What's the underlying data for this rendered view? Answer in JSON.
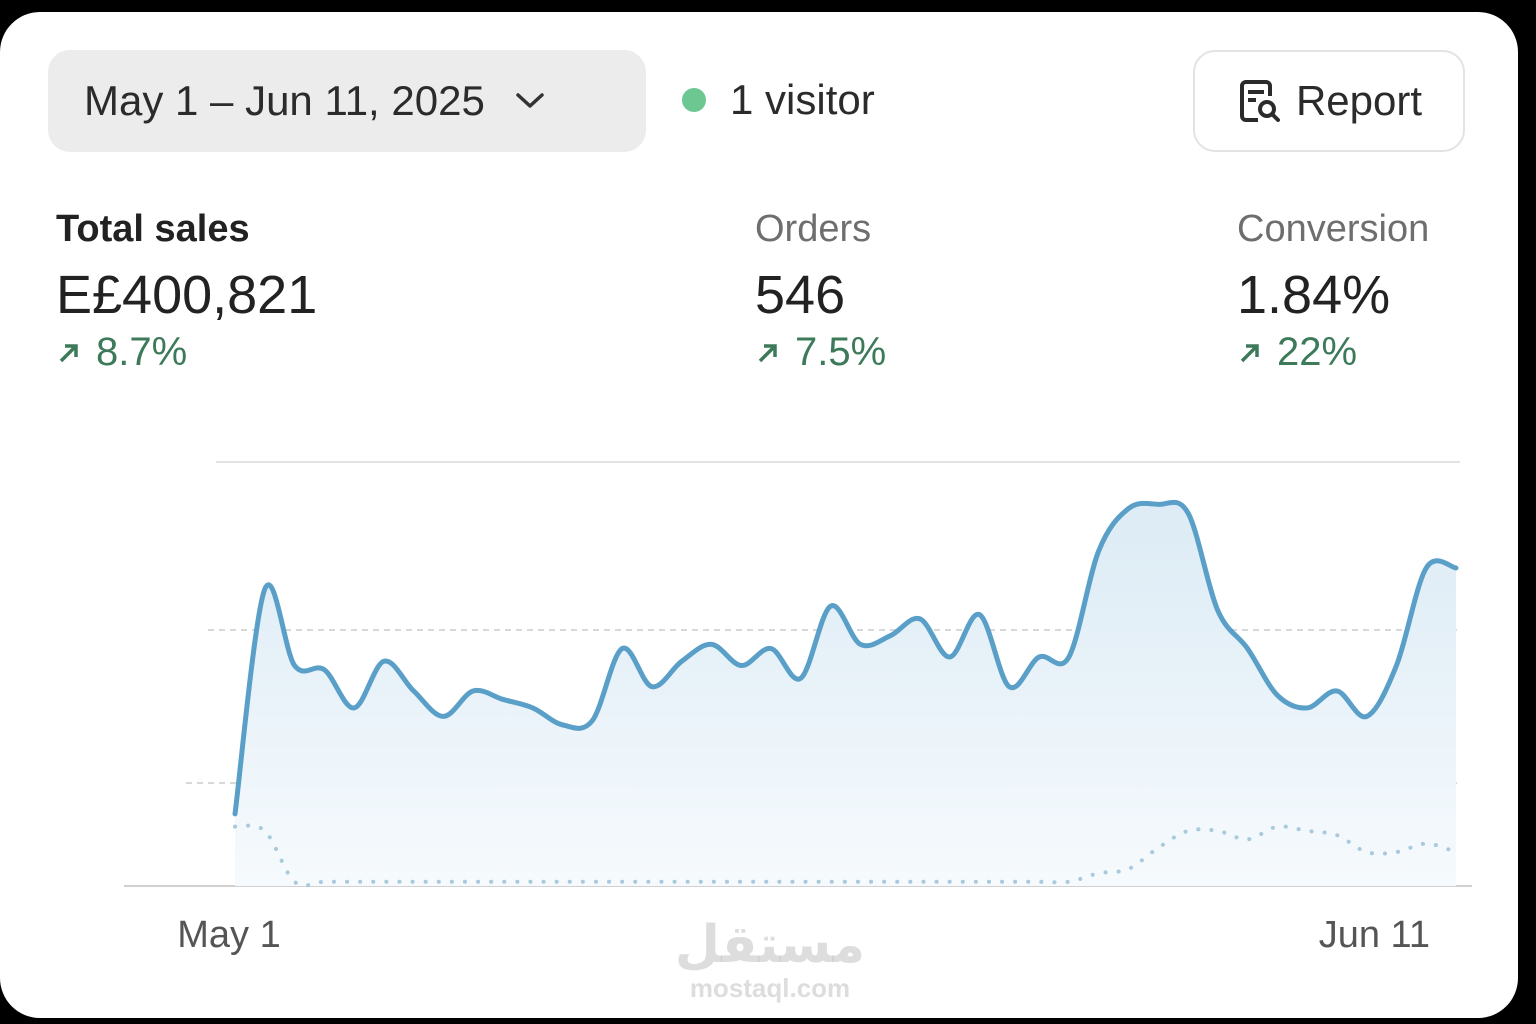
{
  "header": {
    "date_range": "May 1 – Jun 11, 2025",
    "visitors": "1 visitor",
    "report_button": "Report"
  },
  "metrics": [
    {
      "label": "Total sales",
      "value": "E£400,821",
      "change": "8.7%"
    },
    {
      "label": "Orders",
      "value": "546",
      "change": "7.5%"
    },
    {
      "label": "Conversion",
      "value": "1.84%",
      "change": "22%"
    }
  ],
  "chart_data": {
    "type": "line",
    "categories": [
      "May 1",
      null,
      null,
      null,
      null,
      null,
      null,
      null,
      null,
      null,
      null,
      null,
      null,
      null,
      null,
      null,
      null,
      null,
      null,
      null,
      null,
      null,
      null,
      null,
      null,
      null,
      null,
      null,
      null,
      null,
      null,
      null,
      null,
      null,
      null,
      null,
      null,
      null,
      null,
      null,
      null,
      "Jun 11"
    ],
    "ylim": [
      0,
      100
    ],
    "series": [
      {
        "color": "#5a9fc8",
        "values": [
          17,
          70,
          52,
          51,
          42,
          53,
          46,
          40,
          46,
          44,
          42,
          38,
          39,
          56,
          47,
          53,
          57,
          52,
          56,
          49,
          66,
          57,
          59,
          63,
          54,
          64,
          47,
          54,
          54,
          79,
          89,
          90,
          88,
          65,
          56,
          45,
          42,
          46,
          40,
          52,
          75,
          75
        ]
      },
      {
        "color": "#a9c9dd",
        "style": "dotted",
        "values": [
          14,
          13,
          1,
          1,
          1,
          1,
          1,
          1,
          1,
          1,
          1,
          1,
          1,
          1,
          1,
          1,
          1,
          1,
          1,
          1,
          1,
          1,
          1,
          1,
          1,
          1,
          1,
          1,
          1,
          3,
          4,
          9,
          13,
          13,
          11,
          14,
          13,
          12,
          8,
          8,
          10,
          8
        ]
      }
    ]
  },
  "watermark": {
    "arabic": "مستقل",
    "url": "mostaql.com"
  }
}
